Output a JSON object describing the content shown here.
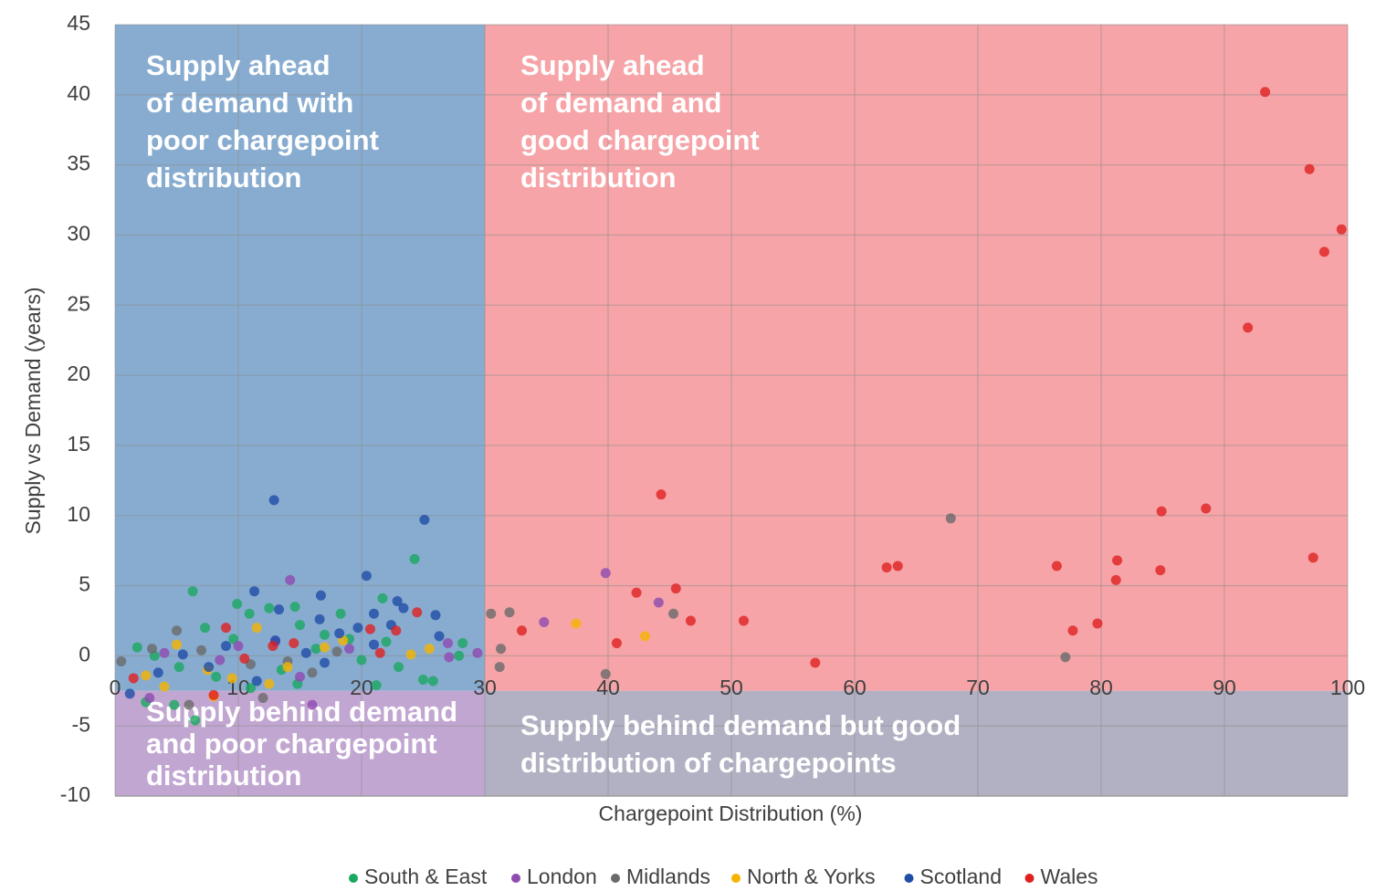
{
  "chart_data": {
    "type": "scatter",
    "x_label": "Chargepoint Distribution (%)",
    "y_label": "Supply vs Demand (years)",
    "xlim": [
      0,
      100
    ],
    "xticks": [
      0,
      10,
      20,
      30,
      40,
      50,
      60,
      70,
      80,
      90,
      100
    ],
    "ylim": [
      -10,
      45
    ],
    "yticks": [
      -10,
      -5,
      0,
      5,
      10,
      15,
      20,
      25,
      30,
      35,
      40,
      45
    ],
    "grid": true,
    "legend": "bottom",
    "regions": [
      {
        "x": [
          0,
          30
        ],
        "y": [
          -2.5,
          45
        ],
        "color": "#88acd0",
        "label": [
          "Supply ahead",
          "of demand with",
          "poor chargepoint",
          "distribution"
        ]
      },
      {
        "x": [
          30,
          100
        ],
        "y": [
          -2.5,
          45
        ],
        "color": "#f6a4a8",
        "label": [
          "Supply ahead",
          "of demand and",
          "good chargepoint",
          "distribution"
        ]
      },
      {
        "x": [
          0,
          30
        ],
        "y": [
          -10,
          -2.5
        ],
        "color": "#c2a6d2",
        "label": [
          "Supply behind demand",
          "and poor chargepoint",
          "distribution"
        ]
      },
      {
        "x": [
          30,
          100
        ],
        "y": [
          -10,
          -2.5
        ],
        "color": "#b1b1c3",
        "label": [
          "Supply behind demand but good",
          "distribution of chargepoints"
        ]
      }
    ],
    "series": [
      {
        "name": "South & East",
        "color": "#1aa860",
        "x": [
          24.3,
          6.3,
          9.9,
          14.6,
          21.7,
          10.9,
          18.3,
          12.5,
          7.3,
          15,
          17,
          19,
          22,
          25,
          25.8,
          28.2,
          27.9,
          21.2,
          14.8,
          11,
          4.8,
          2.5,
          6.5,
          3.2,
          1.8,
          8.2,
          13.5,
          16.3,
          20,
          23,
          9.6,
          5.2
        ],
        "values": [
          6.9,
          4.6,
          3.7,
          3.5,
          4.1,
          3.0,
          3.0,
          3.4,
          2.0,
          2.2,
          1.5,
          1.2,
          1.0,
          -1.7,
          -1.8,
          0.9,
          0.0,
          -2.1,
          -2.0,
          -2.3,
          -3.5,
          -3.3,
          -4.6,
          0.0,
          0.6,
          -1.5,
          -1.0,
          0.5,
          -0.3,
          -0.8,
          1.2,
          -0.8
        ]
      },
      {
        "name": "London",
        "color": "#8e4bb0",
        "x": [
          39.8,
          44.1,
          34.8,
          14.2,
          27,
          29.4,
          27.1,
          16,
          2.8,
          8.5,
          13,
          19,
          4,
          10,
          15
        ],
        "values": [
          5.9,
          3.8,
          2.4,
          5.4,
          0.9,
          0.2,
          -0.1,
          -3.5,
          -3.0,
          -0.3,
          1.0,
          0.5,
          0.2,
          0.7,
          -1.5
        ]
      },
      {
        "name": "Midlands",
        "color": "#6a6a6a",
        "x": [
          67.8,
          45.3,
          32,
          30.5,
          31.3,
          31.2,
          39.8,
          77.1,
          5,
          7,
          11,
          3,
          16,
          18,
          12,
          6,
          0.5,
          14
        ],
        "values": [
          9.8,
          3.0,
          3.1,
          3.0,
          0.5,
          -0.8,
          -1.3,
          -0.1,
          1.8,
          0.4,
          -0.6,
          0.5,
          -1.2,
          0.3,
          -3.0,
          -3.5,
          -0.4,
          -0.4
        ]
      },
      {
        "name": "North & Yorks",
        "color": "#f5b400",
        "x": [
          37.4,
          43,
          8,
          11.5,
          5,
          7.5,
          2.5,
          14,
          17,
          18.5,
          24,
          25.5,
          9.5,
          4,
          12.5
        ],
        "values": [
          2.3,
          1.4,
          -2.9,
          2.0,
          0.8,
          -1.0,
          -1.4,
          -0.8,
          0.6,
          1.1,
          0.1,
          0.5,
          -1.6,
          -2.2,
          -2.0
        ]
      },
      {
        "name": "Scotland",
        "color": "#1f4ea6",
        "x": [
          12.9,
          25.1,
          20.4,
          11.3,
          16.7,
          22.9,
          23.4,
          13.3,
          26,
          16.6,
          19.7,
          21,
          26.3,
          22.4,
          18.2,
          13,
          9,
          15.5,
          17,
          7.6,
          3.5,
          21,
          11.5,
          5.5,
          1.2
        ],
        "values": [
          11.1,
          9.7,
          5.7,
          4.6,
          4.3,
          3.9,
          3.4,
          3.3,
          2.9,
          2.6,
          2.0,
          3.0,
          1.4,
          2.2,
          1.6,
          1.1,
          0.7,
          0.2,
          -0.5,
          -0.8,
          -1.2,
          0.8,
          -1.8,
          0.1,
          -2.7
        ]
      },
      {
        "name": "Wales",
        "color": "#e02020",
        "x": [
          93.3,
          96.9,
          99.5,
          98.1,
          91.9,
          44.3,
          88.5,
          84.9,
          97.2,
          81.3,
          62.6,
          63.5,
          76.4,
          84.8,
          81.2,
          45.5,
          42.3,
          46.7,
          51,
          79.7,
          77.7,
          33,
          40.7,
          56.8,
          24.5,
          20.7,
          22.8,
          14.5,
          9,
          12.8,
          21.5,
          8,
          1.5,
          10.5
        ],
        "values": [
          40.2,
          34.7,
          30.4,
          28.8,
          23.4,
          11.5,
          10.5,
          10.3,
          7.0,
          6.8,
          6.3,
          6.4,
          6.4,
          6.1,
          5.4,
          4.8,
          4.5,
          2.5,
          2.5,
          2.3,
          1.8,
          1.8,
          0.9,
          -0.5,
          3.1,
          1.9,
          1.8,
          0.9,
          2.0,
          0.7,
          0.2,
          -2.8,
          -1.6,
          -0.2
        ]
      }
    ]
  }
}
